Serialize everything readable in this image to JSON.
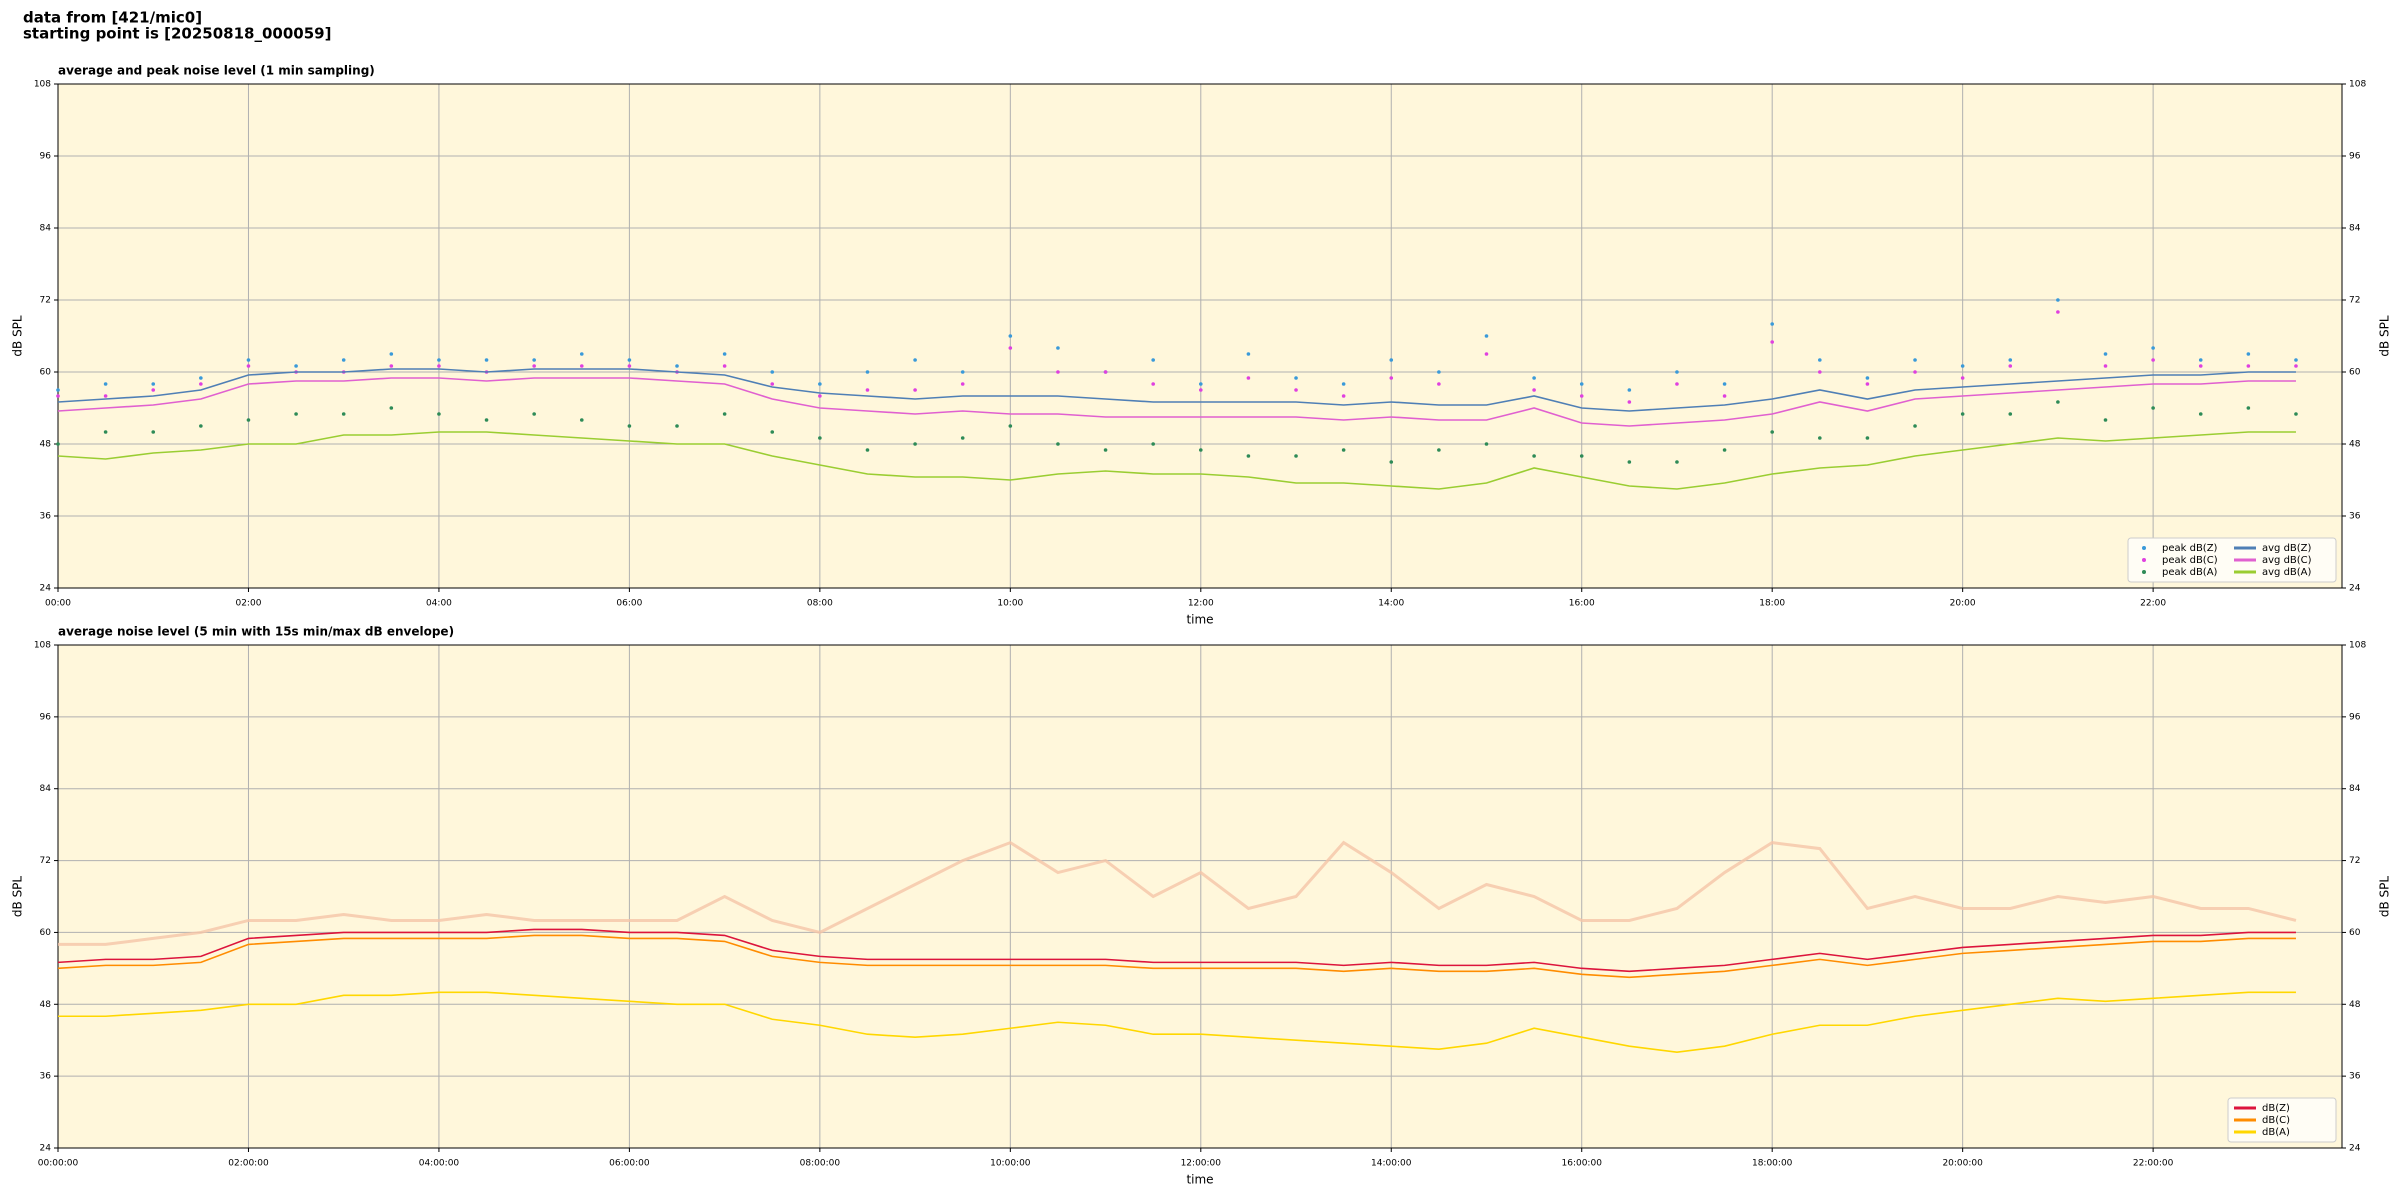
{
  "header": {
    "lines": [
      "data from [421/mic0]",
      "starting point is [20250818_000059]"
    ]
  },
  "chart_data": [
    {
      "type": "line",
      "title": "average and peak noise level (1 min sampling)",
      "xlabel": "time",
      "ylabel": "dB SPL",
      "y2label": "dB SPL",
      "x": [
        "00:00",
        "00:30",
        "01:00",
        "01:30",
        "02:00",
        "02:30",
        "03:00",
        "03:30",
        "04:00",
        "04:30",
        "05:00",
        "05:30",
        "06:00",
        "06:30",
        "07:00",
        "07:30",
        "08:00",
        "08:30",
        "09:00",
        "09:30",
        "10:00",
        "10:30",
        "11:00",
        "11:30",
        "12:00",
        "12:30",
        "13:00",
        "13:30",
        "14:00",
        "14:30",
        "15:00",
        "15:30",
        "16:00",
        "16:30",
        "17:00",
        "17:30",
        "18:00",
        "18:30",
        "19:00",
        "19:30",
        "20:00",
        "20:30",
        "21:00",
        "21:30",
        "22:00",
        "22:30",
        "23:00",
        "23:30"
      ],
      "xlim": [
        "00:00",
        "23:59"
      ],
      "xticks": [
        "00:00",
        "02:00",
        "04:00",
        "06:00",
        "08:00",
        "10:00",
        "12:00",
        "14:00",
        "16:00",
        "18:00",
        "20:00",
        "22:00"
      ],
      "ylim": [
        24,
        108
      ],
      "yticks": [
        24,
        36,
        48,
        60,
        72,
        84,
        96,
        108
      ],
      "grid": true,
      "background": "#fff7db",
      "legend": "lower right",
      "legend_columns": 2,
      "series": [
        {
          "name": "peak dB(Z)",
          "color": "#3a9ad9",
          "style": "points",
          "values": [
            57,
            58,
            58,
            59,
            62,
            61,
            62,
            63,
            62,
            62,
            62,
            63,
            62,
            61,
            63,
            60,
            58,
            60,
            62,
            60,
            66,
            64,
            60,
            62,
            58,
            63,
            59,
            58,
            62,
            60,
            66,
            59,
            58,
            57,
            60,
            58,
            68,
            62,
            59,
            62,
            61,
            62,
            72,
            63,
            64,
            62,
            63,
            62
          ]
        },
        {
          "name": "peak dB(C)",
          "color": "#e040e0",
          "style": "points",
          "values": [
            56,
            56,
            57,
            58,
            61,
            60,
            60,
            61,
            61,
            60,
            61,
            61,
            61,
            60,
            61,
            58,
            56,
            57,
            57,
            58,
            64,
            60,
            60,
            58,
            57,
            59,
            57,
            56,
            59,
            58,
            63,
            57,
            56,
            55,
            58,
            56,
            65,
            60,
            58,
            60,
            59,
            61,
            70,
            61,
            62,
            61,
            61,
            61
          ]
        },
        {
          "name": "peak dB(A)",
          "color": "#2e8b57",
          "style": "points",
          "values": [
            48,
            50,
            50,
            51,
            52,
            53,
            53,
            54,
            53,
            52,
            53,
            52,
            51,
            51,
            53,
            50,
            49,
            47,
            48,
            49,
            51,
            48,
            47,
            48,
            47,
            46,
            46,
            47,
            45,
            47,
            48,
            46,
            46,
            45,
            45,
            47,
            50,
            49,
            49,
            51,
            53,
            53,
            55,
            52,
            54,
            53,
            54,
            53
          ]
        },
        {
          "name": "avg dB(Z)",
          "color": "#4f7fb5",
          "style": "line",
          "values": [
            55,
            55.5,
            56,
            57,
            59.5,
            60,
            60,
            60.5,
            60.5,
            60,
            60.5,
            60.5,
            60.5,
            60,
            59.5,
            57.5,
            56.5,
            56,
            55.5,
            56,
            56,
            56,
            55.5,
            55,
            55,
            55,
            55,
            54.5,
            55,
            54.5,
            54.5,
            56,
            54,
            53.5,
            54,
            54.5,
            55.5,
            57,
            55.5,
            57,
            57.5,
            58,
            58.5,
            59,
            59.5,
            59.5,
            60,
            60
          ]
        },
        {
          "name": "avg dB(C)",
          "color": "#e060d0",
          "style": "line",
          "values": [
            53.5,
            54,
            54.5,
            55.5,
            58,
            58.5,
            58.5,
            59,
            59,
            58.5,
            59,
            59,
            59,
            58.5,
            58,
            55.5,
            54,
            53.5,
            53,
            53.5,
            53,
            53,
            52.5,
            52.5,
            52.5,
            52.5,
            52.5,
            52,
            52.5,
            52,
            52,
            54,
            51.5,
            51,
            51.5,
            52,
            53,
            55,
            53.5,
            55.5,
            56,
            56.5,
            57,
            57.5,
            58,
            58,
            58.5,
            58.5
          ]
        },
        {
          "name": "avg dB(A)",
          "color": "#9acd32",
          "style": "line",
          "values": [
            46,
            45.5,
            46.5,
            47,
            48,
            48,
            49.5,
            49.5,
            50,
            50,
            49.5,
            49,
            48.5,
            48,
            48,
            46,
            44.5,
            43,
            42.5,
            42.5,
            42,
            43,
            43.5,
            43,
            43,
            42.5,
            41.5,
            41.5,
            41,
            40.5,
            41.5,
            44,
            42.5,
            41,
            40.5,
            41.5,
            43,
            44,
            44.5,
            46,
            47,
            48,
            49,
            48.5,
            49,
            49.5,
            50,
            50
          ]
        }
      ]
    },
    {
      "type": "line",
      "title": "average noise level (5 min with 15s min/max dB envelope)",
      "xlabel": "time",
      "ylabel": "dB SPL",
      "y2label": "dB SPL",
      "x": [
        "00:00:00",
        "00:30:00",
        "01:00:00",
        "01:30:00",
        "02:00:00",
        "02:30:00",
        "03:00:00",
        "03:30:00",
        "04:00:00",
        "04:30:00",
        "05:00:00",
        "05:30:00",
        "06:00:00",
        "06:30:00",
        "07:00:00",
        "07:30:00",
        "08:00:00",
        "08:30:00",
        "09:00:00",
        "09:30:00",
        "10:00:00",
        "10:30:00",
        "11:00:00",
        "11:30:00",
        "12:00:00",
        "12:30:00",
        "13:00:00",
        "13:30:00",
        "14:00:00",
        "14:30:00",
        "15:00:00",
        "15:30:00",
        "16:00:00",
        "16:30:00",
        "17:00:00",
        "17:30:00",
        "18:00:00",
        "18:30:00",
        "19:00:00",
        "19:30:00",
        "20:00:00",
        "20:30:00",
        "21:00:00",
        "21:30:00",
        "22:00:00",
        "22:30:00",
        "23:00:00",
        "23:30:00"
      ],
      "xlim": [
        "00:00:00",
        "23:59:00"
      ],
      "xticks": [
        "00:00:00",
        "02:00:00",
        "04:00:00",
        "06:00:00",
        "08:00:00",
        "10:00:00",
        "12:00:00",
        "14:00:00",
        "16:00:00",
        "18:00:00",
        "20:00:00",
        "22:00:00"
      ],
      "ylim": [
        24,
        108
      ],
      "yticks": [
        24,
        36,
        48,
        60,
        72,
        84,
        96,
        108
      ],
      "grid": true,
      "background": "#fff7db",
      "legend": "lower right",
      "legend_columns": 1,
      "envelope": {
        "color": "#f5c4a8",
        "values": [
          58,
          58,
          59,
          60,
          62,
          62,
          63,
          62,
          62,
          63,
          62,
          62,
          62,
          62,
          66,
          62,
          60,
          64,
          68,
          72,
          75,
          70,
          72,
          66,
          70,
          64,
          66,
          75,
          70,
          64,
          68,
          66,
          62,
          62,
          64,
          70,
          75,
          74,
          64,
          66,
          64,
          64,
          66,
          65,
          66,
          64,
          64,
          62
        ]
      },
      "series": [
        {
          "name": "dB(Z)",
          "color": "#dc143c",
          "style": "line",
          "values": [
            55,
            55.5,
            55.5,
            56,
            59,
            59.5,
            60,
            60,
            60,
            60,
            60.5,
            60.5,
            60,
            60,
            59.5,
            57,
            56,
            55.5,
            55.5,
            55.5,
            55.5,
            55.5,
            55.5,
            55,
            55,
            55,
            55,
            54.5,
            55,
            54.5,
            54.5,
            55,
            54,
            53.5,
            54,
            54.5,
            55.5,
            56.5,
            55.5,
            56.5,
            57.5,
            58,
            58.5,
            59,
            59.5,
            59.5,
            60,
            60
          ]
        },
        {
          "name": "dB(C)",
          "color": "#ff8c00",
          "style": "line",
          "values": [
            54,
            54.5,
            54.5,
            55,
            58,
            58.5,
            59,
            59,
            59,
            59,
            59.5,
            59.5,
            59,
            59,
            58.5,
            56,
            55,
            54.5,
            54.5,
            54.5,
            54.5,
            54.5,
            54.5,
            54,
            54,
            54,
            54,
            53.5,
            54,
            53.5,
            53.5,
            54,
            53,
            52.5,
            53,
            53.5,
            54.5,
            55.5,
            54.5,
            55.5,
            56.5,
            57,
            57.5,
            58,
            58.5,
            58.5,
            59,
            59
          ]
        },
        {
          "name": "dB(A)",
          "color": "#ffd700",
          "style": "line",
          "values": [
            46,
            46,
            46.5,
            47,
            48,
            48,
            49.5,
            49.5,
            50,
            50,
            49.5,
            49,
            48.5,
            48,
            48,
            45.5,
            44.5,
            43,
            42.5,
            43,
            44,
            45,
            44.5,
            43,
            43,
            42.5,
            42,
            41.5,
            41,
            40.5,
            41.5,
            44,
            42.5,
            41,
            40,
            41,
            43,
            44.5,
            44.5,
            46,
            47,
            48,
            49,
            48.5,
            49,
            49.5,
            50,
            50
          ]
        }
      ]
    }
  ]
}
